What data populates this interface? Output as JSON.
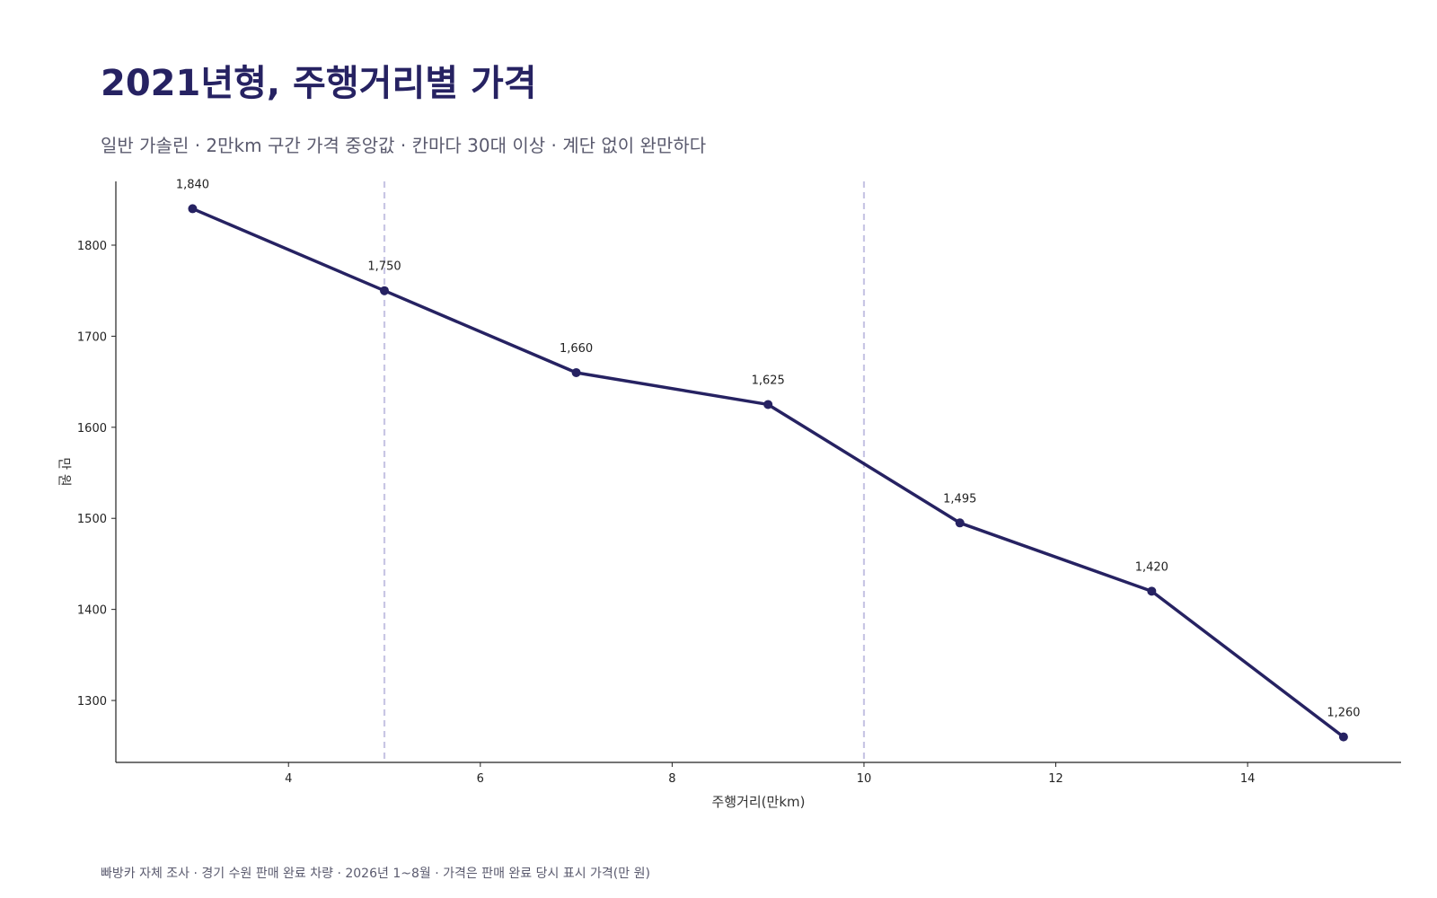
{
  "header": {
    "title": "2021년형, 주행거리별 가격",
    "subtitle": "일반 가솔린 · 2만km 구간 가격 중앙값 · 칸마다 30대 이상 · 계단 없이 완만하다"
  },
  "footer": {
    "source": "빠방카 자체 조사 · 경기 수원 판매 완료 차량 · 2026년 1~8월 · 가격은 판매 완료 당시 표시 가격(만 원)"
  },
  "colors": {
    "line": "#262262",
    "marker": "#262262",
    "reference_line": "#c8c6e4",
    "axis": "#222222",
    "title": "#262262"
  },
  "chart_data": {
    "type": "line",
    "xlabel": "주행거리(만km)",
    "ylabel": "만 원",
    "xlim": [
      2.2,
      15.6
    ],
    "ylim": [
      1232,
      1870
    ],
    "xticks": [
      4,
      6,
      8,
      10,
      12,
      14
    ],
    "yticks": [
      1300,
      1400,
      1500,
      1600,
      1700,
      1800
    ],
    "grid": false,
    "reference_lines_x": [
      5,
      10
    ],
    "series": [
      {
        "x": [
          3,
          5,
          7,
          9,
          11,
          13,
          15
        ],
        "y": [
          1840,
          1750,
          1660,
          1625,
          1495,
          1420,
          1260
        ],
        "labels": [
          "1,840",
          "1,750",
          "1,660",
          "1,625",
          "1,495",
          "1,420",
          "1,260"
        ]
      }
    ]
  }
}
